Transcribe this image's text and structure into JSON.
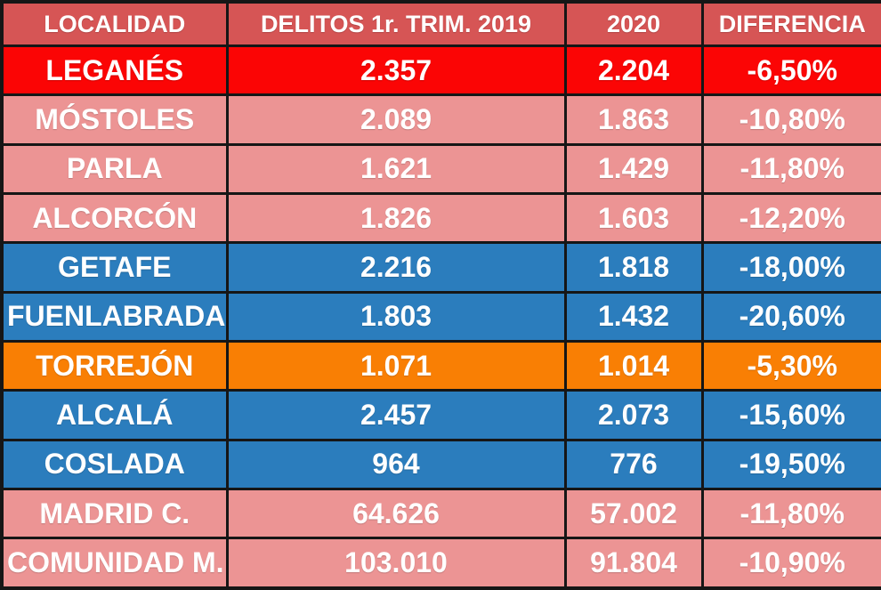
{
  "table": {
    "columns": [
      "LOCALIDAD",
      "DELITOS 1r. TRIM. 2019",
      "2020",
      "DIFERENCIA"
    ],
    "rows": [
      {
        "locality": "LEGANÉS",
        "y2019": "2.357",
        "y2020": "2.204",
        "diff": "-6,50%",
        "theme": "red"
      },
      {
        "locality": "MÓSTOLES",
        "y2019": "2.089",
        "y2020": "1.863",
        "diff": "-10,80%",
        "theme": "pink"
      },
      {
        "locality": "PARLA",
        "y2019": "1.621",
        "y2020": "1.429",
        "diff": "-11,80%",
        "theme": "pink"
      },
      {
        "locality": "ALCORCÓN",
        "y2019": "1.826",
        "y2020": "1.603",
        "diff": "-12,20%",
        "theme": "pink"
      },
      {
        "locality": "GETAFE",
        "y2019": "2.216",
        "y2020": "1.818",
        "diff": "-18,00%",
        "theme": "blue"
      },
      {
        "locality": "FUENLABRADA",
        "y2019": "1.803",
        "y2020": "1.432",
        "diff": "-20,60%",
        "theme": "blue"
      },
      {
        "locality": "TORREJÓN",
        "y2019": "1.071",
        "y2020": "1.014",
        "diff": "-5,30%",
        "theme": "orange"
      },
      {
        "locality": "ALCALÁ",
        "y2019": "2.457",
        "y2020": "2.073",
        "diff": "-15,60%",
        "theme": "blue"
      },
      {
        "locality": "COSLADA",
        "y2019": "964",
        "y2020": "776",
        "diff": "-19,50%",
        "theme": "blue"
      },
      {
        "locality": "MADRID C.",
        "y2019": "64.626",
        "y2020": "57.002",
        "diff": "-11,80%",
        "theme": "pink"
      },
      {
        "locality": "COMUNIDAD M.",
        "y2019": "103.010",
        "y2020": "91.804",
        "diff": "-10,90%",
        "theme": "pink"
      }
    ]
  },
  "colors": {
    "header": "#d65555",
    "row_red": "#fb0505",
    "row_pink": "#ec9494",
    "row_blue": "#2b7dbd",
    "row_orange": "#f97f04",
    "border": "#161616",
    "text": "#ffffff"
  },
  "chart_data": {
    "type": "table",
    "columns": [
      "LOCALIDAD",
      "DELITOS 1r. TRIM. 2019",
      "2020",
      "DIFERENCIA"
    ],
    "rows": [
      [
        "LEGANÉS",
        2357,
        2204,
        -6.5
      ],
      [
        "MÓSTOLES",
        2089,
        1863,
        -10.8
      ],
      [
        "PARLA",
        1621,
        1429,
        -11.8
      ],
      [
        "ALCORCÓN",
        1826,
        1603,
        -12.2
      ],
      [
        "GETAFE",
        2216,
        1818,
        -18.0
      ],
      [
        "FUENLABRADA",
        1803,
        1432,
        -20.6
      ],
      [
        "TORREJÓN",
        1071,
        1014,
        -5.3
      ],
      [
        "ALCALÁ",
        2457,
        2073,
        -15.6
      ],
      [
        "COSLADA",
        964,
        776,
        -19.5
      ],
      [
        "MADRID C.",
        64626,
        57002,
        -11.8
      ],
      [
        "COMUNIDAD M.",
        103010,
        91804,
        -10.9
      ]
    ],
    "notes": "Crime counts per locality, Q1 2019 vs Q1 2020, percentage difference; diff values in percent"
  }
}
